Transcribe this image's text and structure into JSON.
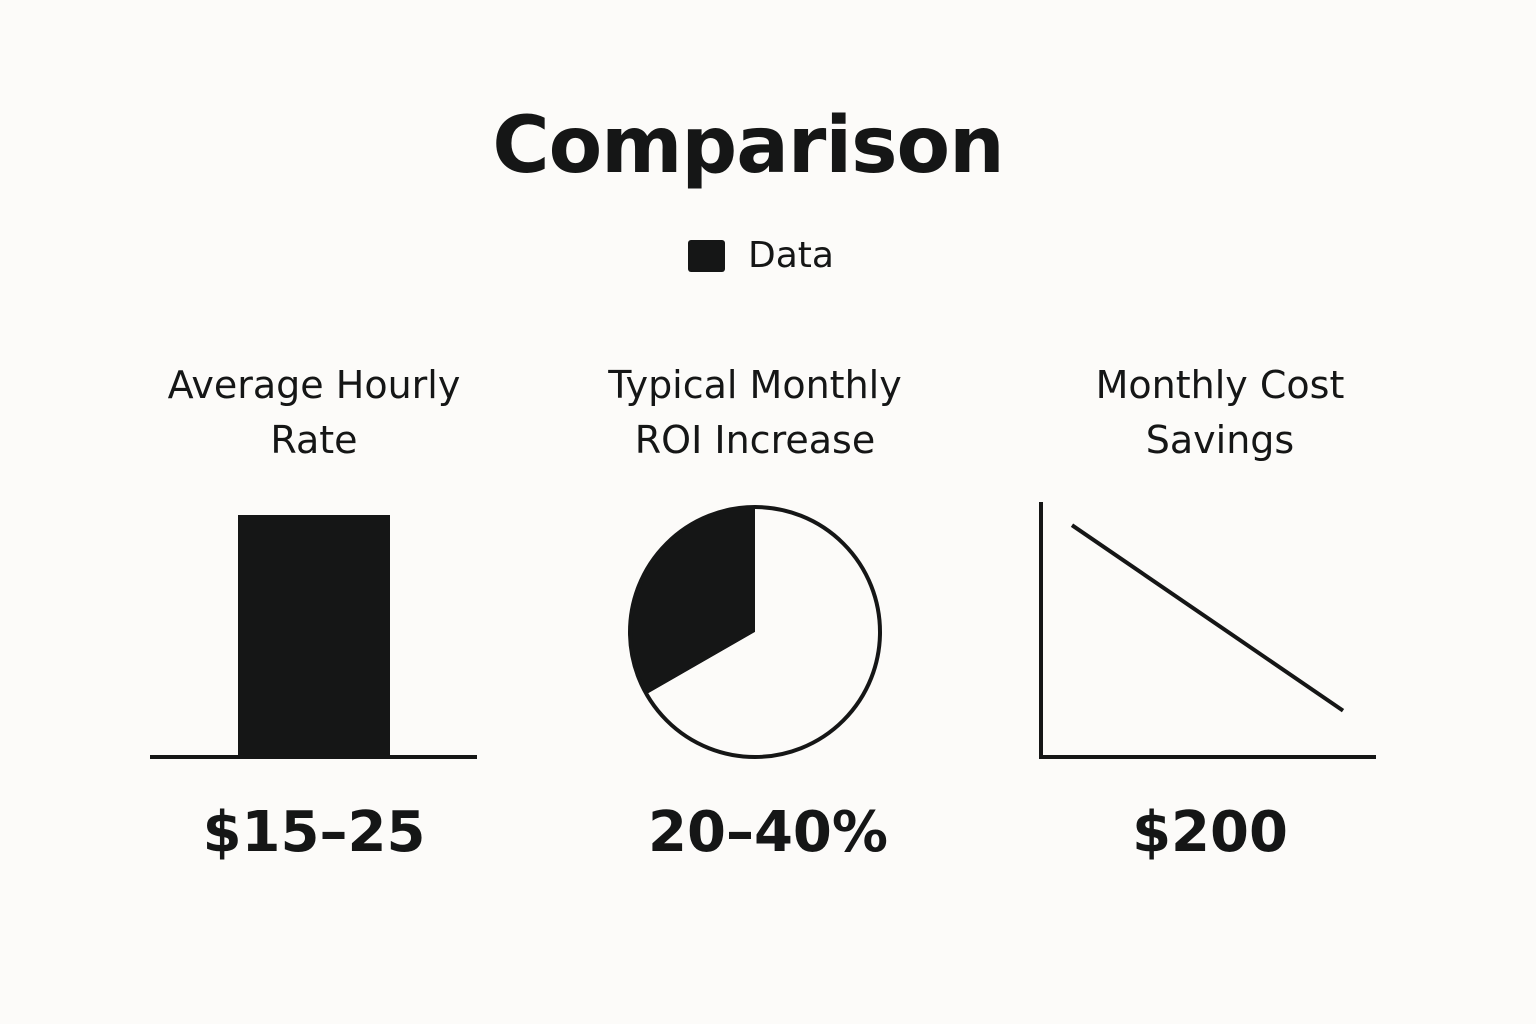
{
  "title": "Comparison",
  "legend": {
    "label": "Data",
    "color": "#151616"
  },
  "colors": {
    "ink": "#151616",
    "background": "#fcfbf9"
  },
  "chart_data": [
    {
      "type": "bar",
      "label_lines": [
        "Average Hourly",
        "Rate"
      ],
      "value_label": "$15–25",
      "series": [
        {
          "name": "Data",
          "values": [
            1
          ]
        }
      ],
      "categories": [
        ""
      ]
    },
    {
      "type": "pie",
      "label_lines": [
        "Typical Monthly",
        "ROI Increase"
      ],
      "value_label": "20–40%",
      "slices": [
        {
          "name": "Data",
          "value": 0.333,
          "filled": true
        },
        {
          "name": "",
          "value": 0.667,
          "filled": false
        }
      ]
    },
    {
      "type": "line",
      "label_lines": [
        "Monthly Cost",
        "Savings"
      ],
      "value_label": "$200",
      "series": [
        {
          "name": "Data",
          "x": [
            0,
            1
          ],
          "values": [
            1,
            0.2
          ]
        }
      ],
      "ylim": [
        0,
        1.1
      ]
    }
  ]
}
